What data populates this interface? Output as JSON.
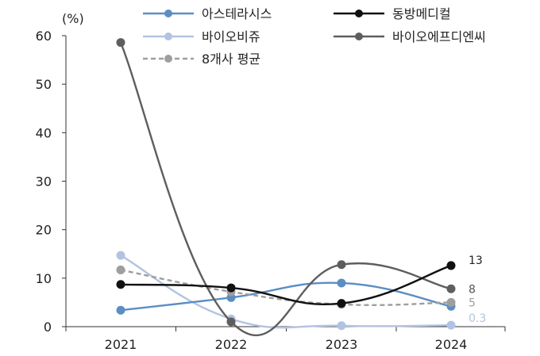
{
  "chart_data": {
    "type": "line",
    "unit_label": "(%)",
    "title": "",
    "xlabel": "",
    "ylabel": "",
    "x": [
      "2021",
      "2022",
      "2023",
      "2024"
    ],
    "ylim": [
      0,
      60
    ],
    "yticks": [
      0,
      10,
      20,
      30,
      40,
      50,
      60
    ],
    "grid": false,
    "legend_position": "top",
    "series": [
      {
        "name": "아스테라시스",
        "values": [
          3.4,
          6.0,
          9.0,
          4.2
        ],
        "color": "#5b8ec3",
        "dashed": false
      },
      {
        "name": "동방메디컬",
        "values": [
          8.7,
          8.0,
          4.8,
          12.6
        ],
        "color": "#111111",
        "dashed": false
      },
      {
        "name": "바이오비쥬",
        "values": [
          14.7,
          1.6,
          0.2,
          0.3
        ],
        "color": "#b2c3e2",
        "dashed": false
      },
      {
        "name": "바이오에프디엔씨",
        "values": [
          58.6,
          1.0,
          12.8,
          7.8
        ],
        "color": "#5e5e5e",
        "dashed": false
      },
      {
        "name": "8개사 평균",
        "values": [
          11.7,
          7.2,
          4.6,
          5.0
        ],
        "color": "#9e9e9e",
        "dashed": true
      }
    ],
    "end_labels": [
      {
        "text": "13",
        "value": 12.6,
        "color": "#222222"
      },
      {
        "text": "8",
        "value": 7.8,
        "color": "#555555"
      },
      {
        "text": "5",
        "value": 5.0,
        "color": "#9e9e9e"
      },
      {
        "text": "0.3",
        "value": 0.3,
        "color": "#b2c3e2"
      }
    ]
  }
}
